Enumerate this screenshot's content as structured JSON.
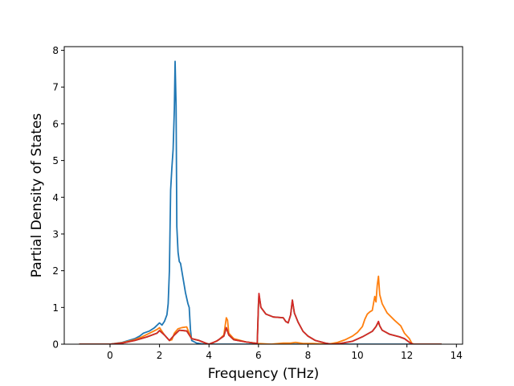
{
  "chart_data": {
    "type": "line",
    "xlabel": "Frequency (THz)",
    "ylabel": "Partial Density of States",
    "xlim": [
      -1.85,
      14.25
    ],
    "ylim": [
      0,
      8.1
    ],
    "xticks": [
      0,
      2,
      4,
      6,
      8,
      10,
      12,
      14
    ],
    "yticks": [
      0,
      1,
      2,
      3,
      4,
      5,
      6,
      7,
      8
    ],
    "grid": false,
    "legend": "none",
    "series": [
      {
        "color": "#1f77b4",
        "points": [
          [
            -1.25,
            0
          ],
          [
            0,
            0
          ],
          [
            0.5,
            0.05
          ],
          [
            1,
            0.15
          ],
          [
            1.2,
            0.22
          ],
          [
            1.35,
            0.3
          ],
          [
            1.6,
            0.36
          ],
          [
            1.8,
            0.45
          ],
          [
            2.0,
            0.58
          ],
          [
            2.1,
            0.52
          ],
          [
            2.2,
            0.62
          ],
          [
            2.3,
            0.8
          ],
          [
            2.35,
            1.1
          ],
          [
            2.4,
            2.0
          ],
          [
            2.45,
            4.2
          ],
          [
            2.5,
            4.8
          ],
          [
            2.55,
            5.3
          ],
          [
            2.6,
            6.4
          ],
          [
            2.63,
            7.7
          ],
          [
            2.67,
            6.5
          ],
          [
            2.7,
            3.2
          ],
          [
            2.75,
            2.5
          ],
          [
            2.8,
            2.25
          ],
          [
            2.85,
            2.2
          ],
          [
            2.95,
            1.8
          ],
          [
            3.05,
            1.4
          ],
          [
            3.15,
            1.1
          ],
          [
            3.2,
            1.0
          ],
          [
            3.25,
            0.4
          ],
          [
            3.3,
            0.1
          ],
          [
            3.5,
            0.03
          ],
          [
            3.8,
            0
          ],
          [
            13.4,
            0
          ]
        ]
      },
      {
        "color": "#ff7f0e",
        "points": [
          [
            -1.25,
            0
          ],
          [
            0,
            0
          ],
          [
            0.5,
            0.04
          ],
          [
            1,
            0.12
          ],
          [
            1.3,
            0.2
          ],
          [
            1.6,
            0.3
          ],
          [
            1.9,
            0.4
          ],
          [
            2.0,
            0.45
          ],
          [
            2.2,
            0.25
          ],
          [
            2.4,
            0.1
          ],
          [
            2.5,
            0.12
          ],
          [
            2.6,
            0.3
          ],
          [
            2.75,
            0.42
          ],
          [
            2.9,
            0.45
          ],
          [
            3.1,
            0.47
          ],
          [
            3.2,
            0.3
          ],
          [
            3.3,
            0.15
          ],
          [
            3.6,
            0.1
          ],
          [
            3.85,
            0.03
          ],
          [
            4.0,
            0
          ],
          [
            4.2,
            0.05
          ],
          [
            4.4,
            0.12
          ],
          [
            4.6,
            0.25
          ],
          [
            4.7,
            0.72
          ],
          [
            4.75,
            0.65
          ],
          [
            4.8,
            0.3
          ],
          [
            5.0,
            0.15
          ],
          [
            5.5,
            0.06
          ],
          [
            6.0,
            0.02
          ],
          [
            6.5,
            0
          ],
          [
            7.0,
            0.03
          ],
          [
            7.3,
            0.03
          ],
          [
            7.5,
            0.05
          ],
          [
            7.8,
            0.02
          ],
          [
            8.2,
            0.02
          ],
          [
            8.8,
            0
          ],
          [
            9.2,
            0.05
          ],
          [
            9.5,
            0.12
          ],
          [
            9.8,
            0.22
          ],
          [
            10.0,
            0.32
          ],
          [
            10.2,
            0.48
          ],
          [
            10.3,
            0.68
          ],
          [
            10.4,
            0.82
          ],
          [
            10.5,
            0.88
          ],
          [
            10.6,
            0.92
          ],
          [
            10.7,
            1.3
          ],
          [
            10.75,
            1.15
          ],
          [
            10.8,
            1.6
          ],
          [
            10.85,
            1.85
          ],
          [
            10.9,
            1.35
          ],
          [
            11.0,
            1.1
          ],
          [
            11.2,
            0.85
          ],
          [
            11.5,
            0.65
          ],
          [
            11.75,
            0.5
          ],
          [
            11.9,
            0.3
          ],
          [
            12.1,
            0.15
          ],
          [
            12.2,
            0.02
          ],
          [
            12.3,
            0
          ],
          [
            13.4,
            0
          ]
        ]
      },
      {
        "color": "#2ca02c",
        "points": [
          [
            -1.25,
            0
          ],
          [
            0,
            0
          ],
          [
            0.5,
            0.03
          ],
          [
            1,
            0.1
          ],
          [
            1.5,
            0.2
          ],
          [
            1.9,
            0.3
          ],
          [
            2.0,
            0.37
          ],
          [
            2.2,
            0.25
          ],
          [
            2.4,
            0.1
          ],
          [
            2.6,
            0.25
          ],
          [
            2.8,
            0.38
          ],
          [
            3.1,
            0.36
          ],
          [
            3.3,
            0.15
          ],
          [
            3.6,
            0.1
          ],
          [
            3.9,
            0.02
          ],
          [
            4.0,
            0
          ],
          [
            4.3,
            0.08
          ],
          [
            4.6,
            0.22
          ],
          [
            4.7,
            0.45
          ],
          [
            4.8,
            0.25
          ],
          [
            5.0,
            0.12
          ],
          [
            5.5,
            0.06
          ],
          [
            5.95,
            0.02
          ],
          [
            6.0,
            1.1
          ],
          [
            6.02,
            1.35
          ],
          [
            6.1,
            1.0
          ],
          [
            6.3,
            0.82
          ],
          [
            6.6,
            0.74
          ],
          [
            7.0,
            0.72
          ],
          [
            7.1,
            0.62
          ],
          [
            7.2,
            0.58
          ],
          [
            7.3,
            0.8
          ],
          [
            7.37,
            1.2
          ],
          [
            7.45,
            0.85
          ],
          [
            7.6,
            0.6
          ],
          [
            7.8,
            0.35
          ],
          [
            8.0,
            0.22
          ],
          [
            8.3,
            0.1
          ],
          [
            8.7,
            0.03
          ],
          [
            8.95,
            0
          ],
          [
            9.3,
            0.02
          ],
          [
            9.8,
            0.08
          ],
          [
            10.2,
            0.2
          ],
          [
            10.6,
            0.35
          ],
          [
            10.75,
            0.48
          ],
          [
            10.85,
            0.6
          ],
          [
            10.9,
            0.5
          ],
          [
            11.0,
            0.38
          ],
          [
            11.3,
            0.27
          ],
          [
            11.7,
            0.2
          ],
          [
            11.9,
            0.15
          ],
          [
            12.1,
            0.05
          ],
          [
            12.25,
            0
          ],
          [
            13.4,
            0
          ]
        ]
      },
      {
        "color": "#d62728",
        "points": [
          [
            -1.25,
            0
          ],
          [
            0,
            0
          ],
          [
            0.5,
            0.03
          ],
          [
            1,
            0.1
          ],
          [
            1.5,
            0.2
          ],
          [
            1.9,
            0.3
          ],
          [
            2.0,
            0.37
          ],
          [
            2.2,
            0.25
          ],
          [
            2.4,
            0.1
          ],
          [
            2.6,
            0.25
          ],
          [
            2.8,
            0.38
          ],
          [
            3.1,
            0.36
          ],
          [
            3.3,
            0.15
          ],
          [
            3.6,
            0.1
          ],
          [
            3.9,
            0.02
          ],
          [
            4.0,
            0
          ],
          [
            4.3,
            0.08
          ],
          [
            4.6,
            0.22
          ],
          [
            4.7,
            0.45
          ],
          [
            4.8,
            0.25
          ],
          [
            5.0,
            0.12
          ],
          [
            5.5,
            0.06
          ],
          [
            5.95,
            0.02
          ],
          [
            6.0,
            1.1
          ],
          [
            6.02,
            1.38
          ],
          [
            6.1,
            1.0
          ],
          [
            6.3,
            0.82
          ],
          [
            6.6,
            0.74
          ],
          [
            7.0,
            0.72
          ],
          [
            7.1,
            0.62
          ],
          [
            7.2,
            0.58
          ],
          [
            7.3,
            0.8
          ],
          [
            7.37,
            1.2
          ],
          [
            7.45,
            0.85
          ],
          [
            7.6,
            0.6
          ],
          [
            7.8,
            0.35
          ],
          [
            8.0,
            0.22
          ],
          [
            8.3,
            0.1
          ],
          [
            8.7,
            0.03
          ],
          [
            8.95,
            0
          ],
          [
            9.3,
            0.02
          ],
          [
            9.8,
            0.08
          ],
          [
            10.2,
            0.2
          ],
          [
            10.6,
            0.35
          ],
          [
            10.75,
            0.48
          ],
          [
            10.85,
            0.62
          ],
          [
            10.9,
            0.5
          ],
          [
            11.0,
            0.38
          ],
          [
            11.3,
            0.27
          ],
          [
            11.7,
            0.2
          ],
          [
            11.9,
            0.15
          ],
          [
            12.1,
            0.05
          ],
          [
            12.25,
            0
          ],
          [
            13.4,
            0
          ]
        ]
      }
    ]
  }
}
